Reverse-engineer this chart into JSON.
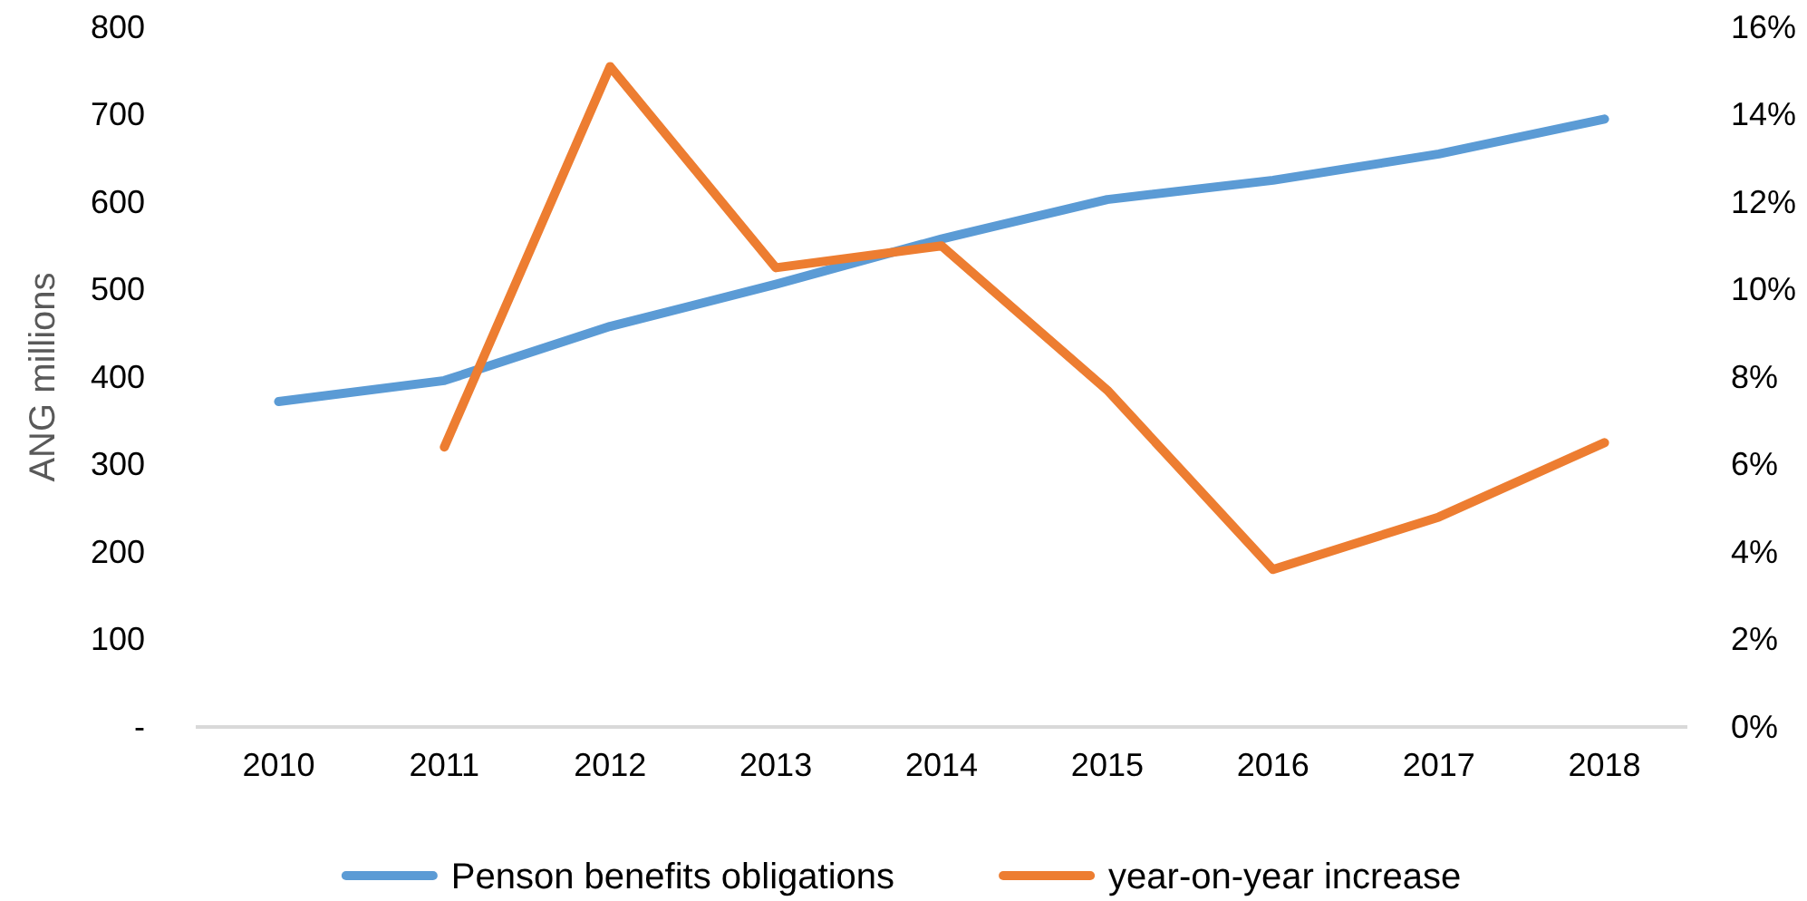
{
  "chart_data": {
    "type": "line",
    "ylabel": "ANG millions",
    "categories": [
      "2010",
      "2011",
      "2012",
      "2013",
      "2014",
      "2015",
      "2016",
      "2017",
      "2018"
    ],
    "series": [
      {
        "name": "Penson benefits obligations",
        "color": "#5b9bd5",
        "values": [
          372,
          396,
          458,
          506,
          558,
          603,
          625,
          655,
          695
        ]
      },
      {
        "name": "year-on-year increase",
        "color": "#ed7d31",
        "axis": "y2",
        "values": [
          null,
          6.4,
          15.1,
          10.5,
          11.0,
          7.7,
          3.6,
          4.8,
          6.5
        ]
      }
    ],
    "ylim": [
      0,
      800
    ],
    "yticks": [
      {
        "value": 0,
        "label": "-"
      },
      100,
      200,
      300,
      400,
      500,
      600,
      700,
      800
    ],
    "y2lim": [
      0,
      16
    ],
    "y2ticks": [
      {
        "value": 0,
        "label": "0%"
      },
      {
        "value": 2,
        "label": "2%"
      },
      {
        "value": 4,
        "label": "4%"
      },
      {
        "value": 6,
        "label": "6%"
      },
      {
        "value": 8,
        "label": "8%"
      },
      {
        "value": 10,
        "label": "10%"
      },
      {
        "value": 12,
        "label": "12%"
      },
      {
        "value": 14,
        "label": "14%"
      },
      {
        "value": 16,
        "label": "16%"
      }
    ],
    "legend": "bottom",
    "marker": "none",
    "line_style": "solid"
  }
}
